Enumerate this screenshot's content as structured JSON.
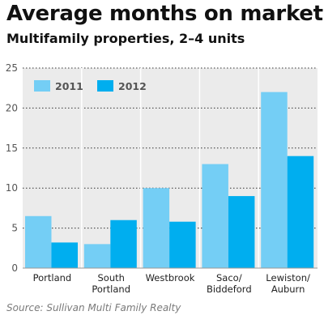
{
  "colors": {
    "series_2011": "#74cef5",
    "series_2012": "#00aeef",
    "plot_bg": "#ebebeb"
  },
  "chart_data": {
    "type": "bar",
    "title": "Average months on market",
    "subtitle": "Multifamily properties, 2–4 units",
    "source": "Source: Sullivan Multi Family Realty",
    "categories": [
      [
        "Portland"
      ],
      [
        "South",
        "Portland"
      ],
      [
        "Westbrook"
      ],
      [
        "Saco/",
        "Biddeford"
      ],
      [
        "Lewiston/",
        "Auburn"
      ]
    ],
    "series": [
      {
        "name": "2011",
        "values": [
          6.5,
          3,
          10,
          13,
          22
        ]
      },
      {
        "name": "2012",
        "values": [
          3.2,
          6,
          5.8,
          9,
          14
        ]
      }
    ],
    "yticks": [
      0,
      5,
      10,
      15,
      20,
      25
    ],
    "ylim": [
      0,
      25
    ],
    "legend": "top-left",
    "grid": true
  }
}
